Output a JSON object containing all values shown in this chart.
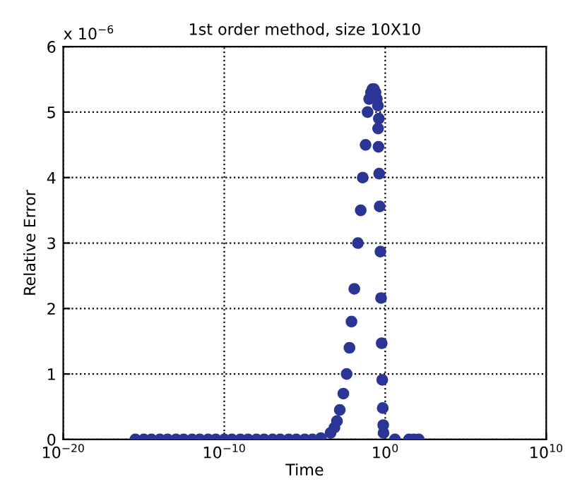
{
  "chart_data": {
    "type": "scatter",
    "title": "1st order method, size 10X10",
    "xlabel": "Time",
    "ylabel": "Relative Error",
    "annotations": [
      "x 10$^{−6}$"
    ],
    "log": "x",
    "grid": true,
    "marker": "circle",
    "xlim": [
      1e-20,
      10000000000.0
    ],
    "xticks": [
      {
        "value": 1e-20,
        "label": "10$^{−20}$"
      },
      {
        "value": 1e-10,
        "label": "10$^{−10}$"
      },
      {
        "value": 1,
        "label": "10$^{0}$"
      },
      {
        "value": 10000000000.0,
        "label": "10$^{10}$"
      }
    ],
    "ylim": [
      0,
      6
    ],
    "yticks": [
      0,
      1,
      2,
      3,
      4,
      5,
      6
    ],
    "series": [
      {
        "color": "#2b3596",
        "x": [
          3e-16,
          1e-15,
          3e-15,
          1e-14,
          3e-14,
          1e-13,
          3e-13,
          1e-12,
          3e-12,
          1e-11,
          3e-11,
          1e-10,
          3e-10,
          1e-09,
          3e-09,
          1e-08,
          3e-08,
          1e-07,
          3e-07,
          1e-06,
          3e-06,
          1e-05,
          3e-05,
          0.0001,
          0.0004,
          0.0007,
          0.001,
          0.0015,
          0.0025,
          0.004,
          0.006,
          0.008,
          0.012,
          0.02,
          0.03,
          0.04,
          0.06,
          0.08,
          0.1,
          0.13,
          0.16,
          0.2,
          0.25,
          0.3,
          0.35,
          0.4,
          0.36,
          0.38,
          0.42,
          0.45,
          0.5,
          0.55,
          0.6,
          0.65,
          0.7,
          0.75,
          0.78,
          4,
          30,
          60,
          120
        ],
        "values": [
          0,
          0,
          0,
          0,
          0,
          0,
          0,
          0,
          0,
          0,
          0,
          0,
          0,
          0,
          0,
          0,
          0,
          0,
          0,
          0,
          0,
          0,
          0,
          0.02,
          0.1,
          0.18,
          0.28,
          0.45,
          0.7,
          1.0,
          1.4,
          1.8,
          2.3,
          3.0,
          3.5,
          4.0,
          4.5,
          5.0,
          5.2,
          5.3,
          5.35,
          5.35,
          5.3,
          5.2,
          5.1,
          4.9,
          4.75,
          4.47,
          4.06,
          3.56,
          2.87,
          2.16,
          1.47,
          0.91,
          0.48,
          0.22,
          0.1,
          0,
          0,
          0,
          0
        ]
      }
    ]
  }
}
